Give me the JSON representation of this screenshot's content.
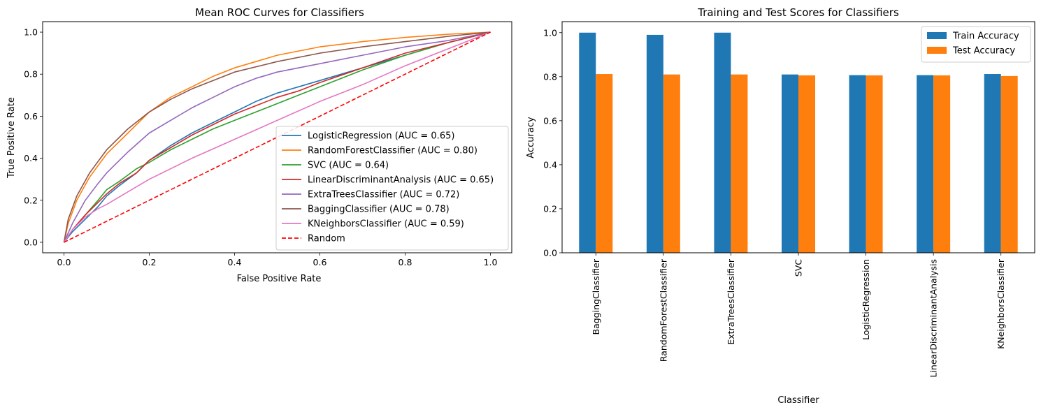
{
  "chart_data": [
    {
      "type": "line",
      "title": "Mean ROC Curves for Classifiers",
      "xlabel": "False Positive Rate",
      "ylabel": "True Positive Rate",
      "xlim": [
        -0.05,
        1.05
      ],
      "ylim": [
        -0.05,
        1.05
      ],
      "xticks": [
        "0.0",
        "0.2",
        "0.4",
        "0.6",
        "0.8",
        "1.0"
      ],
      "yticks": [
        "0.0",
        "0.2",
        "0.4",
        "0.6",
        "0.8",
        "1.0"
      ],
      "legend_position": "lower-right",
      "grid": false,
      "series": [
        {
          "name": "LogisticRegression (AUC = 0.65)",
          "color": "#1f77b4",
          "style": "solid",
          "x": [
            0,
            0.02,
            0.05,
            0.08,
            0.1,
            0.13,
            0.17,
            0.2,
            0.25,
            0.3,
            0.35,
            0.4,
            0.45,
            0.5,
            0.55,
            0.6,
            0.7,
            0.8,
            0.9,
            1.0
          ],
          "y": [
            0,
            0.05,
            0.11,
            0.17,
            0.22,
            0.27,
            0.33,
            0.39,
            0.46,
            0.52,
            0.57,
            0.62,
            0.67,
            0.71,
            0.74,
            0.77,
            0.83,
            0.89,
            0.95,
            1.0
          ]
        },
        {
          "name": "RandomForestClassifier (AUC = 0.80)",
          "color": "#ff7f0e",
          "style": "solid",
          "x": [
            0,
            0.01,
            0.03,
            0.06,
            0.1,
            0.15,
            0.2,
            0.25,
            0.3,
            0.35,
            0.4,
            0.45,
            0.5,
            0.55,
            0.6,
            0.7,
            0.8,
            0.9,
            1.0
          ],
          "y": [
            0,
            0.09,
            0.2,
            0.31,
            0.42,
            0.52,
            0.62,
            0.69,
            0.74,
            0.79,
            0.83,
            0.86,
            0.89,
            0.91,
            0.93,
            0.955,
            0.975,
            0.99,
            1.0
          ]
        },
        {
          "name": "SVC (AUC = 0.64)",
          "color": "#2ca02c",
          "style": "solid",
          "x": [
            0,
            0.02,
            0.05,
            0.08,
            0.1,
            0.13,
            0.17,
            0.2,
            0.25,
            0.3,
            0.35,
            0.4,
            0.45,
            0.5,
            0.55,
            0.6,
            0.7,
            0.8,
            0.9,
            1.0
          ],
          "y": [
            0,
            0.06,
            0.13,
            0.2,
            0.25,
            0.29,
            0.35,
            0.38,
            0.44,
            0.49,
            0.54,
            0.58,
            0.62,
            0.66,
            0.7,
            0.74,
            0.82,
            0.89,
            0.95,
            1.0
          ]
        },
        {
          "name": "LinearDiscriminantAnalysis (AUC = 0.65)",
          "color": "#d62728",
          "style": "solid",
          "x": [
            0,
            0.02,
            0.05,
            0.08,
            0.1,
            0.13,
            0.17,
            0.2,
            0.25,
            0.3,
            0.35,
            0.4,
            0.45,
            0.5,
            0.55,
            0.6,
            0.7,
            0.8,
            0.9,
            1.0
          ],
          "y": [
            0,
            0.06,
            0.13,
            0.19,
            0.23,
            0.28,
            0.33,
            0.39,
            0.45,
            0.51,
            0.56,
            0.61,
            0.65,
            0.69,
            0.72,
            0.76,
            0.83,
            0.9,
            0.95,
            1.0
          ]
        },
        {
          "name": "ExtraTreesClassifier (AUC = 0.72)",
          "color": "#9467bd",
          "style": "solid",
          "x": [
            0,
            0.02,
            0.05,
            0.08,
            0.1,
            0.15,
            0.2,
            0.25,
            0.3,
            0.35,
            0.4,
            0.45,
            0.5,
            0.6,
            0.7,
            0.8,
            0.9,
            1.0
          ],
          "y": [
            0,
            0.09,
            0.2,
            0.28,
            0.33,
            0.43,
            0.52,
            0.58,
            0.64,
            0.69,
            0.74,
            0.78,
            0.81,
            0.85,
            0.89,
            0.93,
            0.96,
            1.0
          ]
        },
        {
          "name": "BaggingClassifier (AUC = 0.78)",
          "color": "#8c564b",
          "style": "solid",
          "x": [
            0,
            0.01,
            0.03,
            0.06,
            0.1,
            0.15,
            0.2,
            0.25,
            0.3,
            0.35,
            0.4,
            0.5,
            0.6,
            0.7,
            0.8,
            0.9,
            1.0
          ],
          "y": [
            0,
            0.11,
            0.22,
            0.33,
            0.44,
            0.54,
            0.62,
            0.68,
            0.73,
            0.77,
            0.81,
            0.86,
            0.9,
            0.93,
            0.955,
            0.98,
            1.0
          ]
        },
        {
          "name": "KNeighborsClassifier (AUC = 0.59)",
          "color": "#e377c2",
          "style": "solid",
          "x": [
            0,
            0.02,
            0.05,
            0.08,
            0.1,
            0.15,
            0.2,
            0.3,
            0.4,
            0.5,
            0.6,
            0.7,
            0.8,
            0.9,
            1.0
          ],
          "y": [
            0,
            0.06,
            0.12,
            0.16,
            0.18,
            0.24,
            0.3,
            0.4,
            0.49,
            0.58,
            0.67,
            0.75,
            0.84,
            0.92,
            1.0
          ]
        },
        {
          "name": "Random",
          "color": "#ff0000",
          "style": "dashed",
          "x": [
            0,
            1
          ],
          "y": [
            0,
            1
          ]
        }
      ]
    },
    {
      "type": "bar",
      "title": "Training and Test Scores for Classifiers",
      "xlabel": "Classifier",
      "ylabel": "Accuracy",
      "ylim": [
        0,
        1.05
      ],
      "yticks": [
        "0.0",
        "0.2",
        "0.4",
        "0.6",
        "0.8",
        "1.0"
      ],
      "legend_position": "top-right",
      "grid": false,
      "categories": [
        "BaggingClassifier",
        "RandomForestClassifier",
        "ExtraTreesClassifier",
        "SVC",
        "LogisticRegression",
        "LinearDiscriminantAnalysis",
        "KNeighborsClassifier"
      ],
      "series": [
        {
          "name": "Train Accuracy",
          "color": "#1f77b4",
          "values": [
            1.0,
            0.99,
            1.0,
            0.81,
            0.807,
            0.807,
            0.812
          ]
        },
        {
          "name": "Test Accuracy",
          "color": "#ff7f0e",
          "values": [
            0.812,
            0.81,
            0.81,
            0.806,
            0.806,
            0.806,
            0.803
          ]
        }
      ]
    }
  ]
}
